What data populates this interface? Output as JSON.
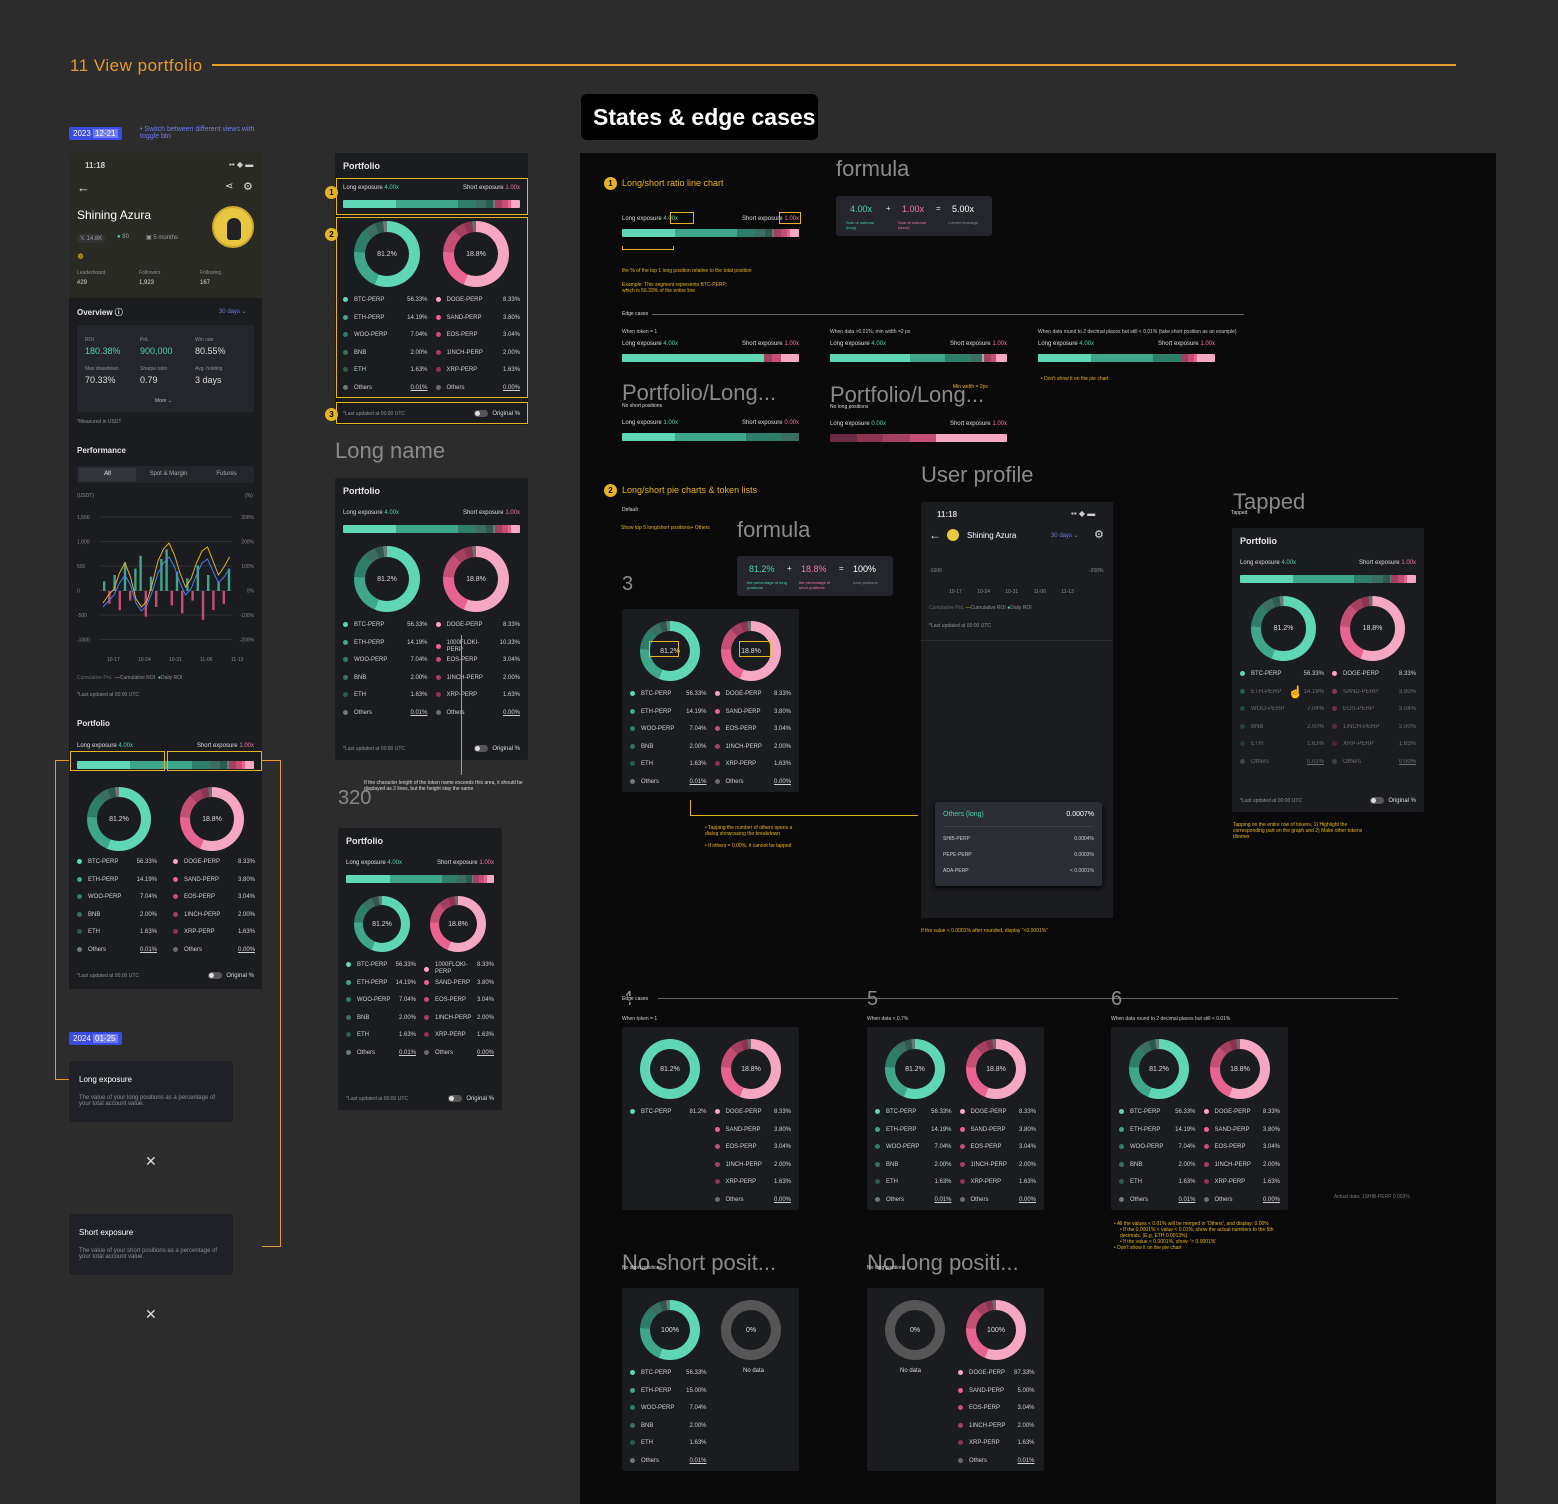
{
  "section": {
    "title": "11 View portfolio",
    "states_title": "States & edge cases"
  },
  "dates": {
    "d1": "2023",
    "d1b": "12-21",
    "d2": "2024",
    "d2b": "01-25"
  },
  "note_toggle": "• Switch between different views with toggle btn",
  "profile": {
    "time": "11:18",
    "name": "Shining Azura",
    "twitter": "14.8K",
    "woo": "80",
    "months": "5 months",
    "leaderboard_l": "Leaderboard",
    "leaderboard_v": "#29",
    "followers_l": "Followers",
    "followers_v": "1,923",
    "following_l": "Following",
    "following_v": "167",
    "overview": "Overview",
    "range": "30 days",
    "roi_l": "ROI",
    "roi_v": "180.38%",
    "pnl_l": "PnL",
    "pnl_v": "900,000",
    "win_l": "Win rate",
    "win_v": "80.55%",
    "mdd_l": "Max drawdown",
    "mdd_v": "70.33%",
    "sharpe_l": "Sharpe ratio",
    "sharpe_v": "0.79",
    "hold_l": "Avg. holding",
    "hold_v": "3 days",
    "more": "More",
    "usdt_note": "*Measured in USDT",
    "performance": "Performance",
    "tabs": [
      "All",
      "Spot & Margin",
      "Futures"
    ],
    "y_left": [
      "1,500",
      "1,000",
      "500",
      "0",
      "-500",
      "-1000"
    ],
    "y_right": [
      "300%",
      "200%",
      "100%",
      "0%",
      "-100%",
      "-200%"
    ],
    "x": [
      "10-17",
      "10-24",
      "10-31",
      "11-06",
      "11-13"
    ],
    "legend": [
      "Cumulative PnL",
      "Cumulative ROI",
      "Daily ROI"
    ],
    "updated": "*Last updated at 00:00 UTC",
    "usdt": "(USDT)",
    "pct": "(%)"
  },
  "portfolio": {
    "title": "Portfolio",
    "long_label": "Long exposure",
    "long_val": "4.00x",
    "short_label": "Short exposure",
    "short_val": "1.00x",
    "long_pct": "81.2%",
    "short_pct": "18.8%",
    "long_rows": [
      [
        "BTC-PERP",
        "56.33%"
      ],
      [
        "ETH-PERP",
        "14.19%"
      ],
      [
        "WOO-PERP",
        "7.04%"
      ],
      [
        "BNB",
        "2.00%"
      ],
      [
        "ETH",
        "1.63%"
      ],
      [
        "Others",
        "0.01%"
      ]
    ],
    "short_rows": [
      [
        "DOGE-PERP",
        "8.33%"
      ],
      [
        "SAND-PERP",
        "3.80%"
      ],
      [
        "EOS-PERP",
        "3.04%"
      ],
      [
        "1INCH-PERP",
        "2.00%"
      ],
      [
        "XRP-PERP",
        "1.63%"
      ],
      [
        "Others",
        "0.00%"
      ]
    ],
    "updated": "*Last updated at 00:00 UTC",
    "original": "Original %"
  },
  "long_name": {
    "heading": "Long name",
    "flok": "1000FLOKI-PERP",
    "flok_v": "10.33%",
    "note": "If the character length of the token name exceeds this area, it should be displayed as 2 lines, but the height stay the same"
  },
  "w320": "320",
  "dialogs": [
    {
      "title": "Long exposure",
      "body": "The value of your long positions as a percentage of your total account value."
    },
    {
      "title": "Short exposure",
      "body": "The value of your short positions as a percentage of your total account value."
    }
  ],
  "s1": {
    "title": "Long/short ratio line chart",
    "formula": "formula",
    "f1": "4.00x",
    "f2": "1.00x",
    "f3": "5.00x",
    "f1l": "Sum of notional (long)",
    "f2l": "Sum of notional (short)",
    "f3l": "Current leverage",
    "note1": "the % of the top 1 long position relative to the total position",
    "note2": "Example: This segment represents BTC-PERP, which is 56.33% of the entire line",
    "edge": "Edge cases",
    "c1": "When token = 1",
    "c2": "When data >0.01%, min width =2 px",
    "c3": "When data round to 2 decimal places but still < 0.01% (take short position as an example)",
    "minw": "Min width = 2px",
    "dontshow": "• Don't show it on the pie chart",
    "pl1": "Portfolio/Long...",
    "pl2": "Portfolio/Long...",
    "nos": "No short positions",
    "nol": "No long positions",
    "zero": "0.00x"
  },
  "s2": {
    "title": "Long/short pie charts & token lists",
    "default": "Default",
    "show5": "Show top 5 long/short positions+ Others",
    "formula": "formula",
    "p1": "81.2%",
    "p2": "18.8%",
    "p3": "100%",
    "p1l": "the percentage of long positions",
    "p2l": "the percentage of short positions",
    "p3l": "total positions",
    "three": "3",
    "tapnote": "• Tapping the number of others opens a dialog showcasing the breakdown",
    "tapnote2": "• If others = 0.00%, it cannot be tapped",
    "user_profile": "User profile",
    "others_long": "Others (long)",
    "others_v": "0.0007%",
    "shib": "SHIB-PERP",
    "shib_v": "0.0004%",
    "pepe": "PEPE-PERP",
    "pepe_v": "0.0003%",
    "ada": "ADA-PERP",
    "ada_v": "< 0.0001%",
    "value_note": "If the value < 0.0001% after rounded, display \"<0.0001%\"",
    "tapped": "Tapped",
    "tapped_note": "Tapping on the entire row of tokens, 1) Highlight the corresponding part on the graph and 2) Make other tokens dimmer",
    "y_1000": "-1000",
    "y_200": "-200%"
  },
  "edge2": {
    "edge": "Edge cases",
    "four": "4",
    "five": "5",
    "six": "6",
    "c4": "When token = 1",
    "c5": "When data < 0.7%",
    "c6": "When data round to 2 decimal places but still < 0.01%",
    "btc_full": "81.2%",
    "actual": "Actual data: 1SHIB-PERP 0.003%",
    "notes": [
      "• All the values < 0.01% will be merged in 'Others', and display: 0.00%",
      "• If the 0.0001% < value < 0.01%, show the actual numbers to the 5th decimals. (E.g. ETH 0.0013%)",
      "• If the value < 0.0001%, show: '< 0.0001%'",
      "• Don't show it on the pie chart"
    ],
    "nsp": "No short posit...",
    "nlp": "No long positi...",
    "nsp_s": "No short positions",
    "nlp_s": "No long positions",
    "p100": "100%",
    "p0": "0%",
    "nodata": "No data",
    "long_only": [
      [
        "BTC-PERP",
        "56.33%"
      ],
      [
        "ETH-PERP",
        "15.00%"
      ],
      [
        "WOO-PERP",
        "7.04%"
      ],
      [
        "BNB",
        "2.00%"
      ],
      [
        "ETH",
        "1.63%"
      ],
      [
        "Others",
        "0.01%"
      ]
    ],
    "short_only": [
      [
        "DOGE-PERP",
        "87.33%"
      ],
      [
        "SAND-PERP",
        "5.00%"
      ],
      [
        "EOS-PERP",
        "3.04%"
      ],
      [
        "1INCH-PERP",
        "2.00%"
      ],
      [
        "XRP-PERP",
        "1.63%"
      ],
      [
        "Others",
        "0.01%"
      ]
    ]
  },
  "colors": {
    "accent": "#e69a2e",
    "green": "#4fd1b0",
    "pink": "#f27aa4",
    "yellow": "#e6b422",
    "blue": "#3b4ce0"
  }
}
